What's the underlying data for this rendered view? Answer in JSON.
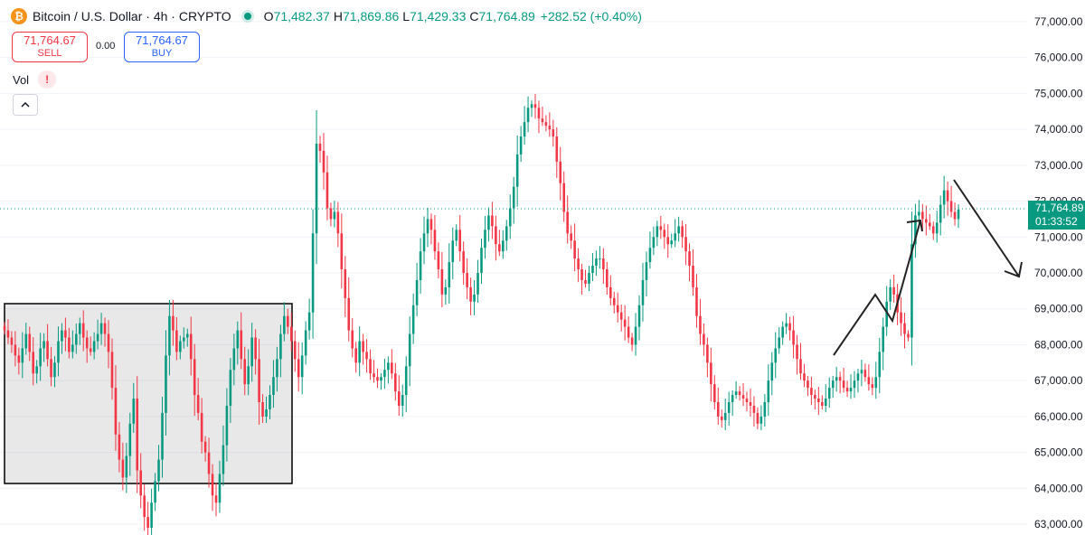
{
  "legend": {
    "symbol_icon": "bitcoin-icon",
    "title": "Bitcoin / U.S. Dollar · 4h · CRYPTO",
    "open_label": "O",
    "open": "71,482.37",
    "high_label": "H",
    "high": "71,869.86",
    "low_label": "L",
    "low": "71,429.33",
    "close_label": "C",
    "close": "71,764.89",
    "change": "+282.52 (+0.40%)"
  },
  "trade": {
    "sell_price": "71,764.67",
    "sell_label": "SELL",
    "spread": "0.00",
    "buy_price": "71,764.67",
    "buy_label": "BUY"
  },
  "indicator": {
    "name": "Vol",
    "warning": "!"
  },
  "collapse_icon": "chevron-up-icon",
  "last_price": {
    "price": "71,764.89",
    "countdown": "01:33:52"
  },
  "colors": {
    "up": "#089981",
    "down": "#f23645",
    "grid": "#f0f3fa",
    "text": "#131722"
  },
  "chart_data": {
    "type": "candlestick",
    "symbol": "Bitcoin / U.S. Dollar",
    "interval": "4h",
    "ylim": [
      62700,
      77300
    ],
    "y_ticks": [
      "63,000.00",
      "64,000.00",
      "65,000.00",
      "66,000.00",
      "67,000.00",
      "68,000.00",
      "69,000.00",
      "70,000.00",
      "71,000.00",
      "72,000.00",
      "73,000.00",
      "74,000.00",
      "75,000.00",
      "76,000.00",
      "77,000.00"
    ],
    "last_price": 71764.89,
    "close_series": [
      68400,
      68200,
      68000,
      67700,
      67500,
      67900,
      68300,
      67800,
      67200,
      67400,
      67900,
      68100,
      67600,
      67100,
      67500,
      68100,
      68400,
      68200,
      67800,
      68000,
      68300,
      68600,
      68200,
      67900,
      67800,
      68100,
      68300,
      68600,
      68300,
      67800,
      66800,
      65500,
      64800,
      64300,
      64900,
      65800,
      66500,
      64500,
      63800,
      63200,
      62900,
      63600,
      64200,
      64800,
      66100,
      67700,
      68800,
      68400,
      67800,
      68100,
      68200,
      68300,
      67600,
      66600,
      66100,
      65300,
      65000,
      64400,
      63800,
      63600,
      64400,
      65200,
      66300,
      67300,
      67900,
      68400,
      67600,
      66900,
      67400,
      68200,
      67600,
      66400,
      66000,
      66200,
      66600,
      67100,
      67600,
      68300,
      68800,
      68500,
      68100,
      67600,
      67100,
      67700,
      68400,
      68900,
      71100,
      73600,
      73400,
      72800,
      71800,
      71500,
      71700,
      71100,
      70100,
      69300,
      68400,
      67900,
      67500,
      68100,
      67800,
      67600,
      67200,
      67100,
      67000,
      67100,
      67300,
      67500,
      67200,
      66700,
      66300,
      66600,
      67400,
      68300,
      69100,
      69800,
      70600,
      71100,
      71500,
      71200,
      70600,
      70100,
      69400,
      69600,
      70300,
      70900,
      71200,
      70600,
      70000,
      69600,
      69200,
      69400,
      70000,
      70700,
      71200,
      71600,
      71300,
      70800,
      70600,
      70900,
      71300,
      71800,
      72400,
      73300,
      73800,
      74200,
      74600,
      74700,
      74600,
      74300,
      74200,
      74100,
      74000,
      73800,
      73100,
      72500,
      71700,
      71100,
      70900,
      70400,
      70100,
      69800,
      69700,
      70000,
      70200,
      70400,
      70400,
      70100,
      69600,
      69300,
      69100,
      68900,
      68700,
      68500,
      68200,
      68000,
      68500,
      69100,
      69800,
      70300,
      70700,
      71000,
      71300,
      71200,
      71000,
      70800,
      70900,
      71100,
      71300,
      71000,
      70600,
      70200,
      69600,
      68800,
      68300,
      68000,
      67500,
      66900,
      66400,
      66000,
      65900,
      66100,
      66400,
      66600,
      66700,
      66600,
      66500,
      66400,
      66300,
      66100,
      65800,
      66000,
      66400,
      67000,
      67500,
      67900,
      68200,
      68500,
      68600,
      68400,
      68000,
      67600,
      67200,
      67000,
      66800,
      66600,
      66500,
      66400,
      66300,
      66500,
      66800,
      67000,
      67100,
      67000,
      66800,
      66700,
      66800,
      67000,
      67200,
      67300,
      67100,
      66900,
      66800,
      67100,
      67800,
      68500,
      69200,
      69600,
      69400,
      68900,
      68600,
      68300,
      68200,
      70800,
      71600,
      71700,
      71500,
      71400,
      71300,
      71100,
      71400,
      71900,
      72300,
      72000,
      71700,
      71500,
      71764.89
    ]
  }
}
